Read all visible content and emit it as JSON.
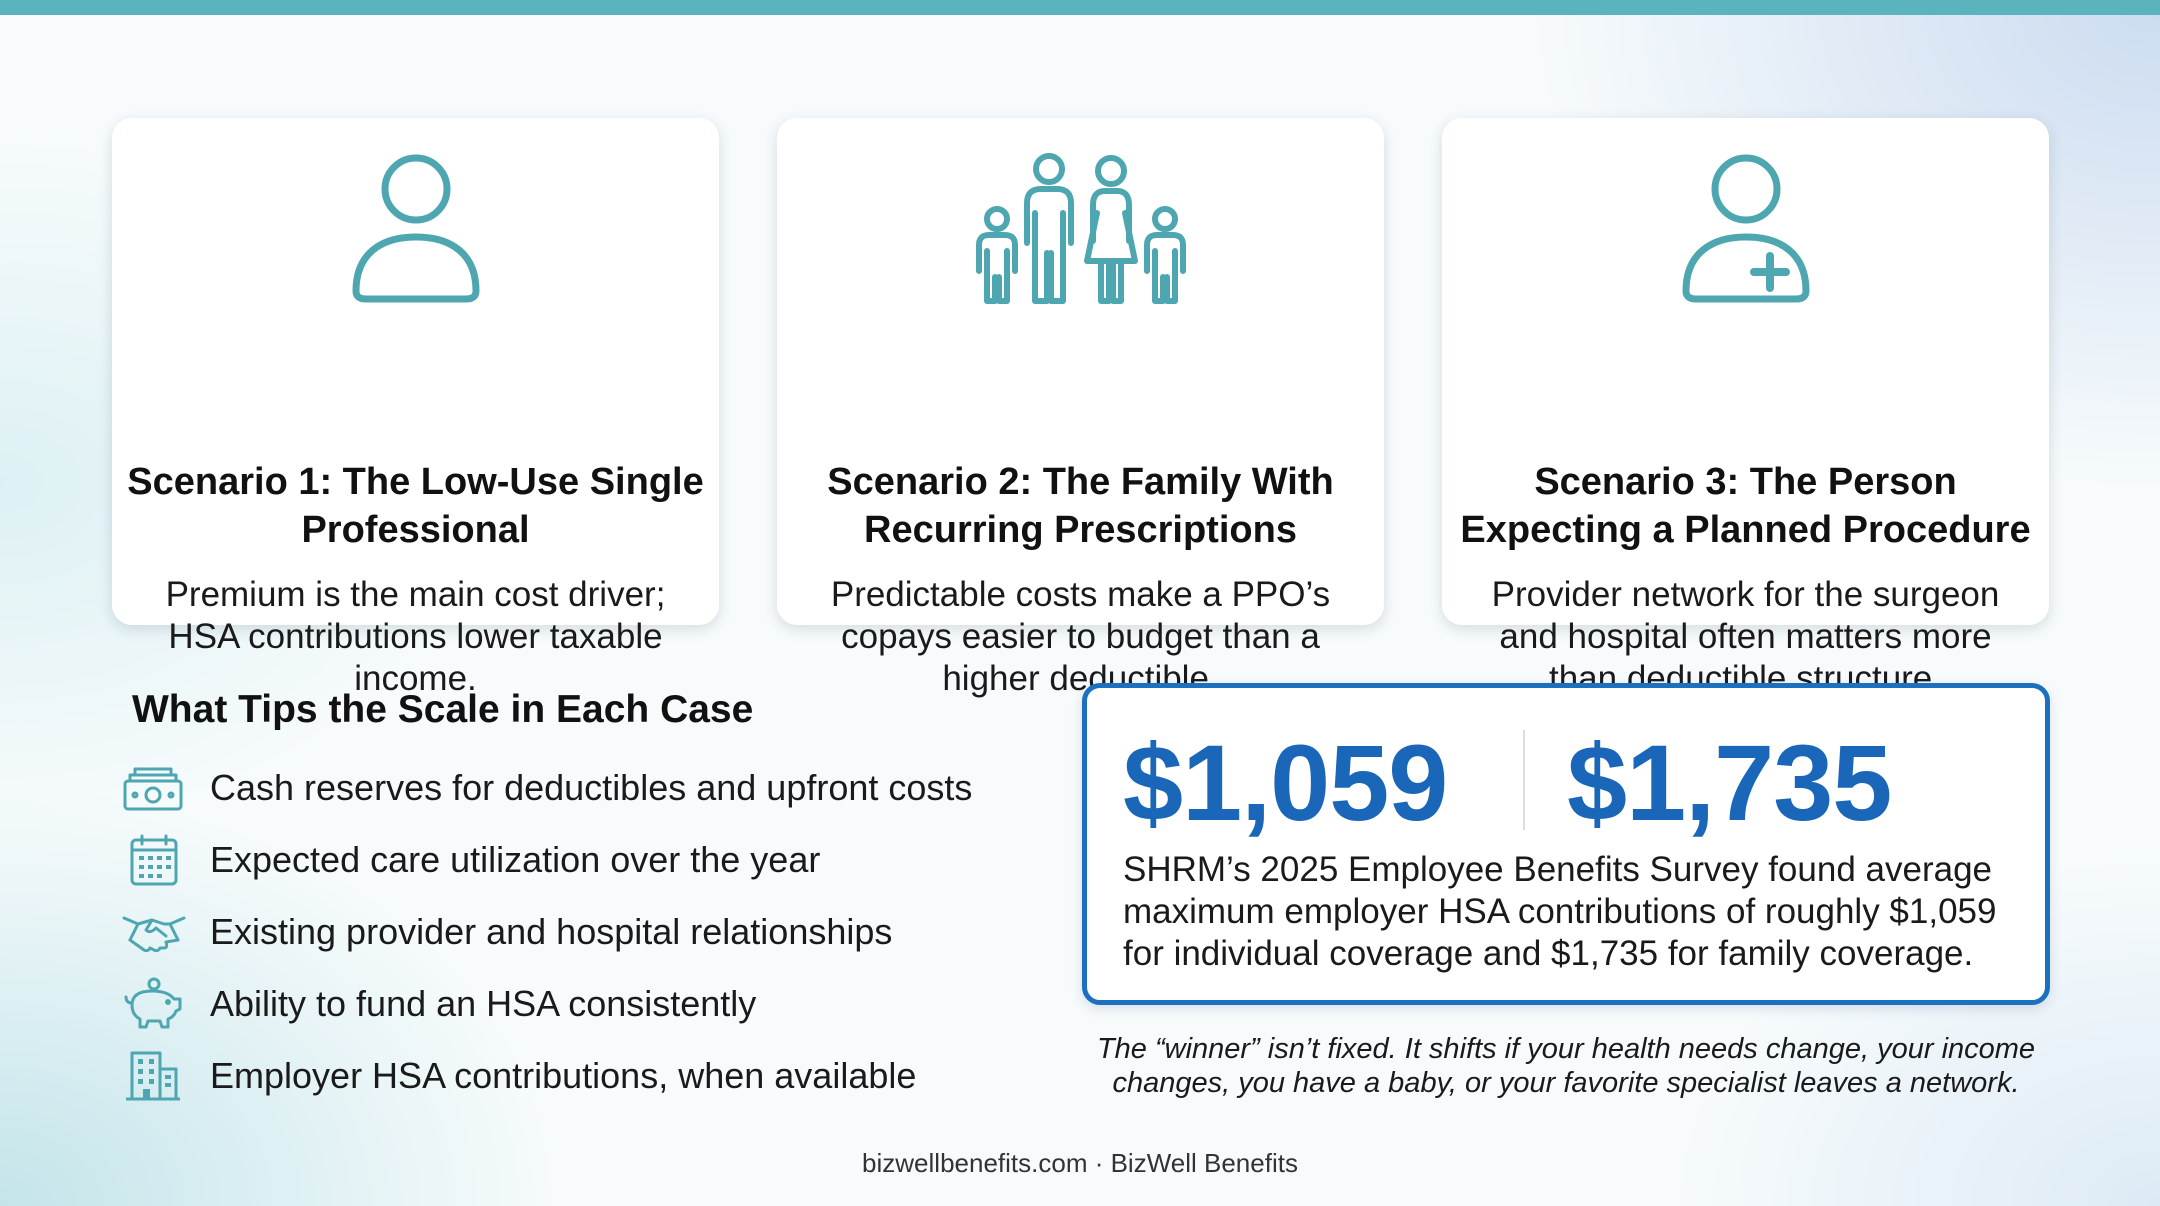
{
  "colors": {
    "accent_teal": "#4ea7b0",
    "stat_blue": "#1a66b8",
    "stat_border": "#1d6fbf",
    "top_bar": "#5ab3bd"
  },
  "scenarios": [
    {
      "icon": "person-icon",
      "title": "Scenario 1: The Low-Use Single Professional",
      "body": "Premium is the main cost driver; HSA contributions lower taxable income."
    },
    {
      "icon": "family-icon",
      "title": "Scenario 2: The Family With Recurring Prescriptions",
      "body": "Predictable costs make a PPO’s copays easier to budget than a higher deductible."
    },
    {
      "icon": "person-medical-icon",
      "title": "Scenario 3: The Person Expecting a Planned Procedure",
      "body": "Provider network for the surgeon and hospital often matters more than deductible structure."
    }
  ],
  "tips": {
    "heading": "What Tips the Scale in Each Case",
    "items": [
      {
        "icon": "cash-icon",
        "text": "Cash reserves for deductibles and upfront costs"
      },
      {
        "icon": "calendar-icon",
        "text": "Expected care utilization over the year"
      },
      {
        "icon": "handshake-icon",
        "text": "Existing provider and hospital relationships"
      },
      {
        "icon": "piggy-bank-icon",
        "text": "Ability to fund an HSA consistently"
      },
      {
        "icon": "building-icon",
        "text": "Employer HSA contributions, when available"
      }
    ]
  },
  "stats": {
    "individual": "$1,059",
    "family": "$1,735",
    "description": "SHRM’s 2025 Employee Benefits Survey found average maximum employer HSA contributions of roughly $1,059 for individual coverage and $1,735 for family coverage."
  },
  "note": "The “winner” isn’t fixed. It shifts if your health needs change, your income changes, you have a baby, or your favorite specialist leaves a network.",
  "footer": "bizwellbenefits.com · BizWell Benefits"
}
